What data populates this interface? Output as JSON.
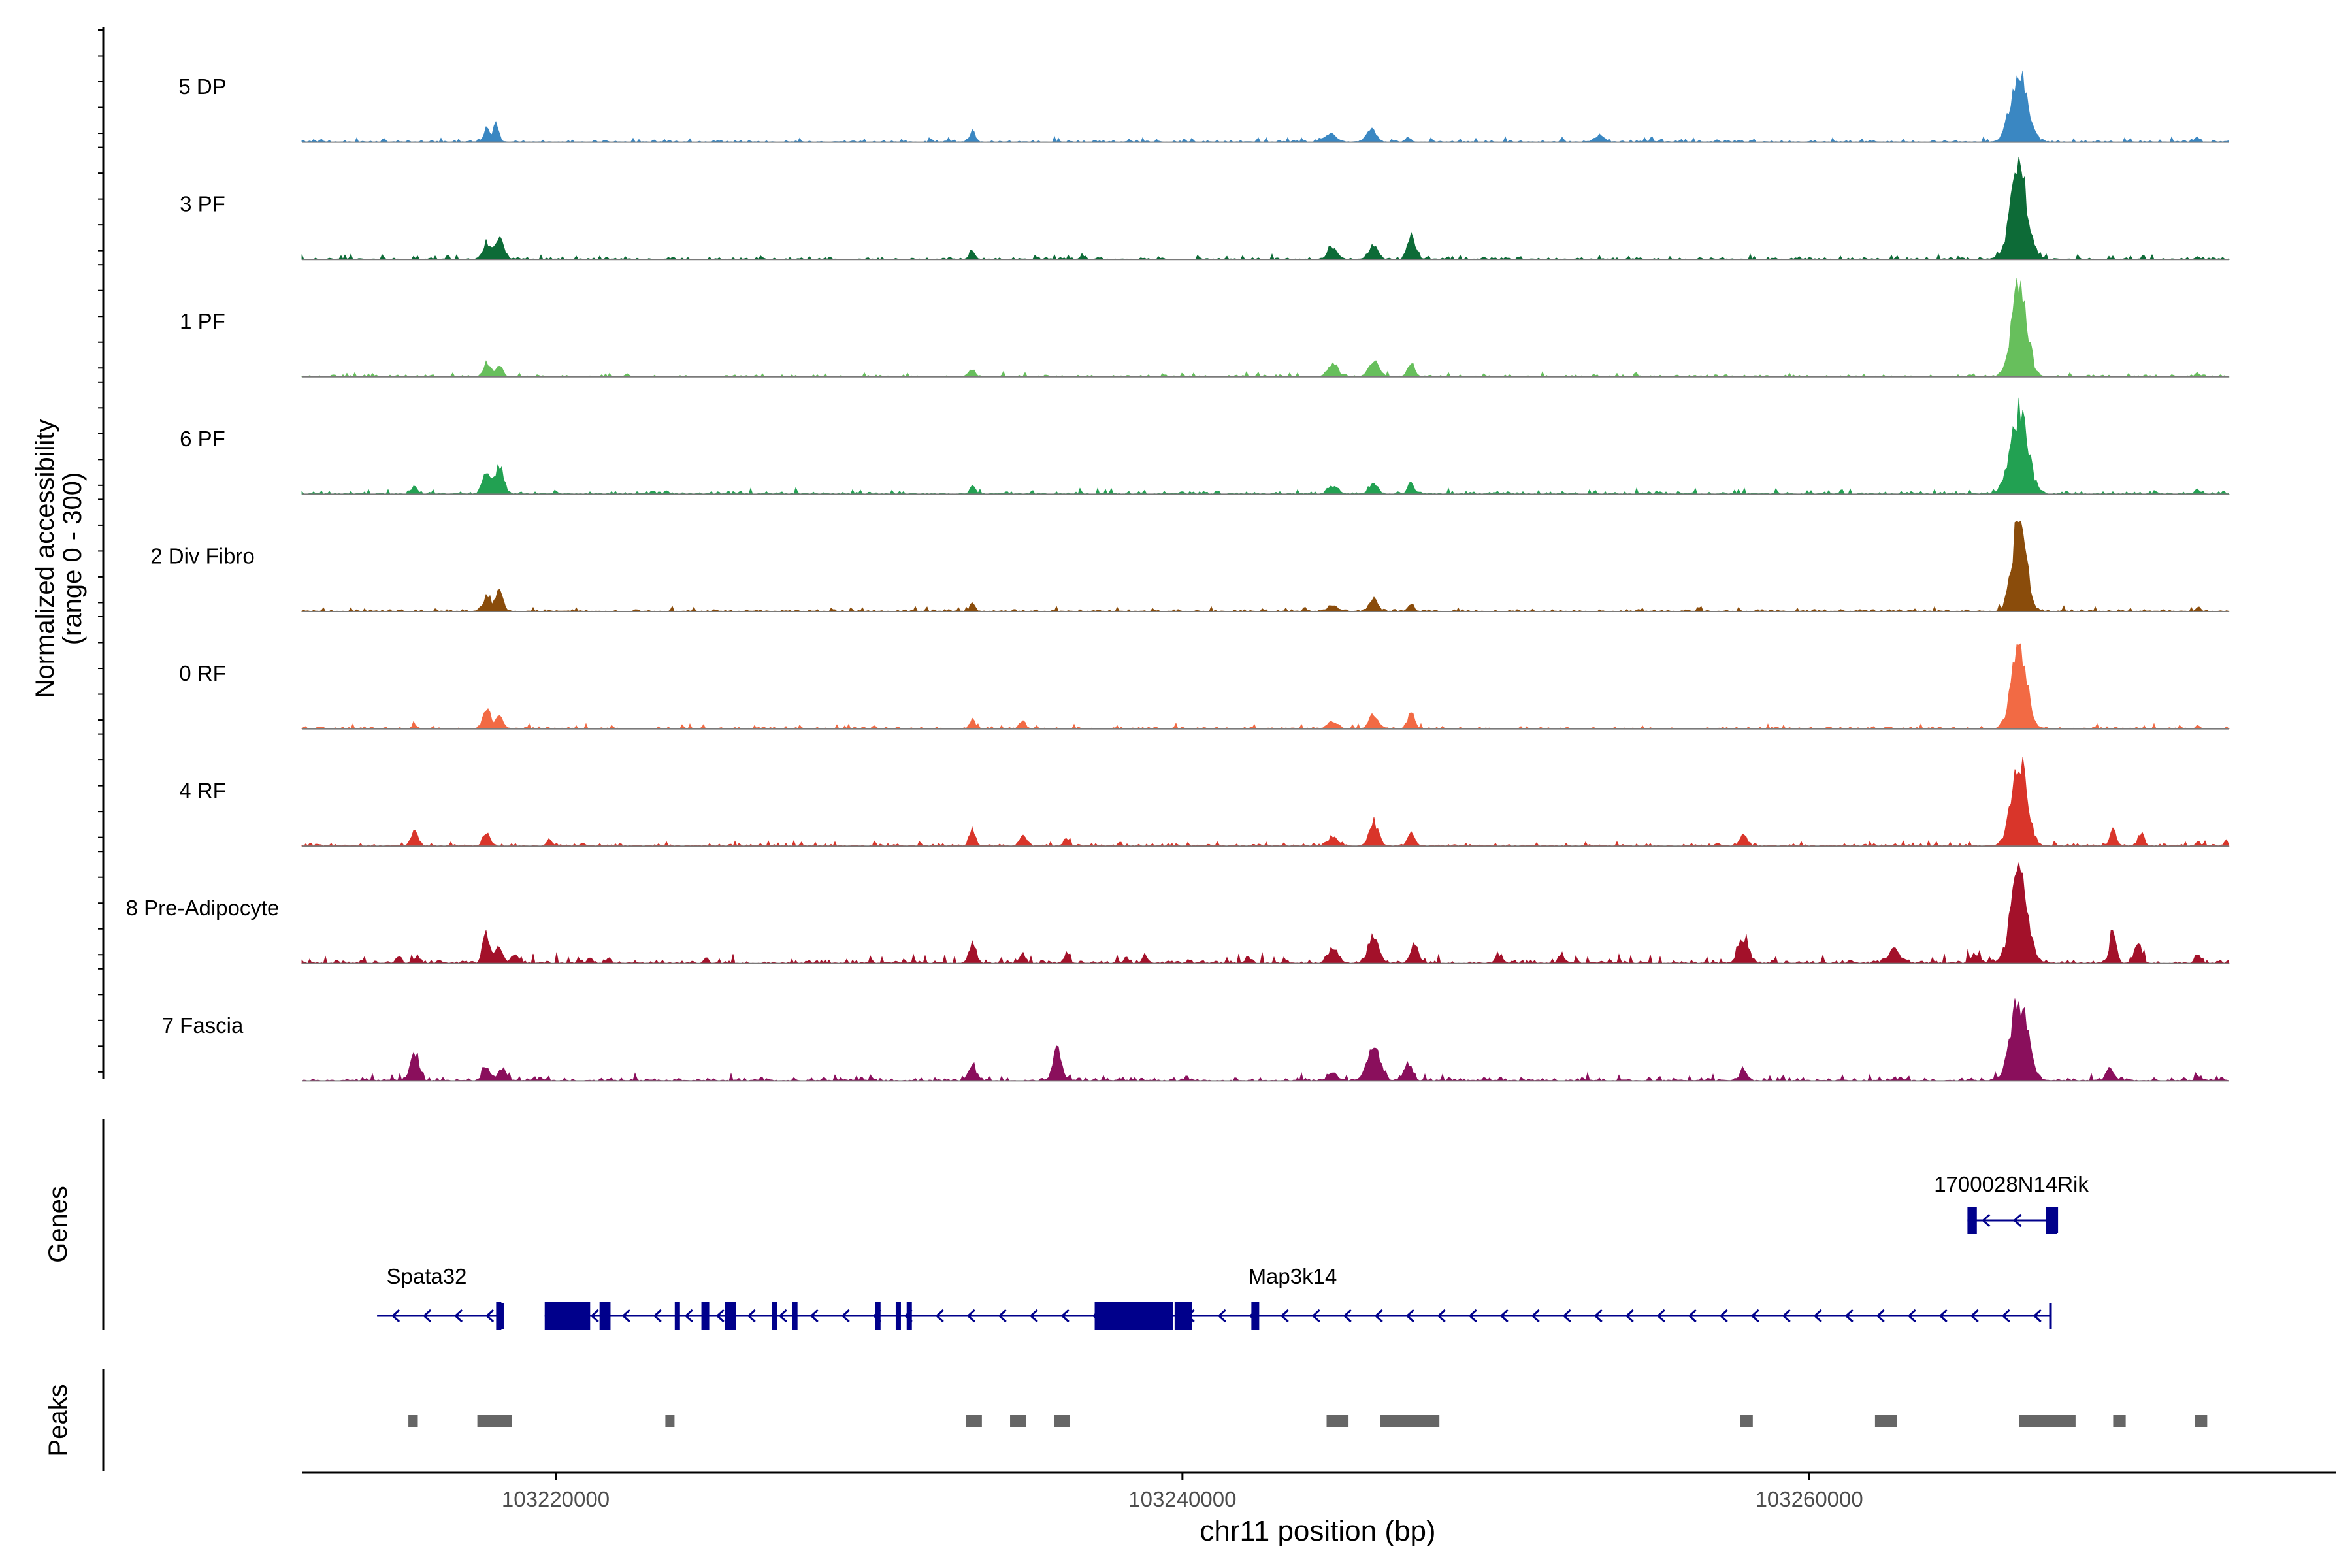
{
  "chart_data": {
    "type": "area",
    "title": "",
    "region": "chr11",
    "xlabel": "chr11 position (bp)",
    "ylabel_line1": "Normalized accessibility",
    "ylabel_line2": "(range 0 - 300)",
    "ylim": [
      0,
      300
    ],
    "xlim": [
      103211900,
      103276800
    ],
    "x_ticks": [
      {
        "value": 103220000,
        "label": "103220000"
      },
      {
        "value": 103240000,
        "label": "103240000"
      },
      {
        "value": 103260000,
        "label": "103260000"
      }
    ],
    "track_start": 103211900,
    "track_end": 103273400,
    "series": [
      {
        "name": "5 DP",
        "color": "#3a87c2",
        "baseline": 3,
        "noise": 2,
        "peaks": [
          [
            103217800,
            18,
            100
          ],
          [
            103218100,
            22,
            90
          ],
          [
            103233300,
            14,
            90
          ],
          [
            103244700,
            10,
            200
          ],
          [
            103246000,
            18,
            150
          ],
          [
            103247200,
            6,
            90
          ],
          [
            103253300,
            8,
            160
          ],
          [
            103266700,
            95,
            260
          ],
          [
            103272400,
            6,
            60
          ]
        ]
      },
      {
        "name": "3 PF",
        "color": "#0d6b37",
        "baseline": 3,
        "noise": 2,
        "peaks": [
          [
            103217800,
            22,
            120
          ],
          [
            103218200,
            28,
            130
          ],
          [
            103233300,
            12,
            80
          ],
          [
            103236800,
            5,
            80
          ],
          [
            103244800,
            15,
            150
          ],
          [
            103246100,
            18,
            140
          ],
          [
            103247300,
            26,
            120
          ],
          [
            103266700,
            120,
            260
          ],
          [
            103272400,
            4,
            60
          ]
        ]
      },
      {
        "name": "1 PF",
        "color": "#67bf5c",
        "baseline": 3,
        "noise": 2,
        "peaks": [
          [
            103217800,
            18,
            110
          ],
          [
            103218200,
            14,
            110
          ],
          [
            103233300,
            10,
            80
          ],
          [
            103244800,
            18,
            150
          ],
          [
            103246100,
            22,
            150
          ],
          [
            103247300,
            18,
            110
          ],
          [
            103266700,
            115,
            240
          ],
          [
            103272400,
            4,
            60
          ]
        ]
      },
      {
        "name": "6 PF",
        "color": "#22a152",
        "baseline": 4,
        "noise": 2,
        "peaks": [
          [
            103215500,
            10,
            80
          ],
          [
            103217800,
            30,
            120
          ],
          [
            103218200,
            38,
            130
          ],
          [
            103233300,
            12,
            80
          ],
          [
            103244800,
            10,
            150
          ],
          [
            103246100,
            16,
            130
          ],
          [
            103247300,
            14,
            100
          ],
          [
            103266700,
            105,
            280
          ],
          [
            103272400,
            6,
            60
          ]
        ]
      },
      {
        "name": "2 Div Fibro",
        "color": "#8a4c0b",
        "baseline": 3,
        "noise": 2,
        "peaks": [
          [
            103217800,
            22,
            110
          ],
          [
            103218200,
            28,
            110
          ],
          [
            103233300,
            12,
            80
          ],
          [
            103244800,
            8,
            150
          ],
          [
            103246100,
            16,
            130
          ],
          [
            103247300,
            8,
            100
          ],
          [
            103266700,
            125,
            220
          ],
          [
            103272400,
            6,
            60
          ]
        ]
      },
      {
        "name": "0 RF",
        "color": "#f26a44",
        "baseline": 3,
        "noise": 2,
        "peaks": [
          [
            103215500,
            6,
            80
          ],
          [
            103217800,
            28,
            110
          ],
          [
            103218200,
            18,
            110
          ],
          [
            103233300,
            12,
            80
          ],
          [
            103234900,
            12,
            90
          ],
          [
            103244800,
            10,
            150
          ],
          [
            103246100,
            20,
            130
          ],
          [
            103247300,
            20,
            110
          ],
          [
            103266700,
            110,
            240
          ],
          [
            103272400,
            4,
            60
          ]
        ]
      },
      {
        "name": "4 RF",
        "color": "#d9352a",
        "baseline": 4,
        "noise": 2,
        "peaks": [
          [
            103215500,
            22,
            110
          ],
          [
            103217800,
            16,
            110
          ],
          [
            103219800,
            8,
            90
          ],
          [
            103233300,
            22,
            90
          ],
          [
            103234900,
            16,
            100
          ],
          [
            103236300,
            8,
            90
          ],
          [
            103244800,
            12,
            150
          ],
          [
            103246100,
            30,
            150
          ],
          [
            103247300,
            18,
            110
          ],
          [
            103257900,
            16,
            100
          ],
          [
            103266700,
            110,
            250
          ],
          [
            103269700,
            24,
            90
          ],
          [
            103270600,
            18,
            90
          ],
          [
            103272400,
            6,
            60
          ],
          [
            103273300,
            6,
            60
          ]
        ]
      },
      {
        "name": "8 Pre-Adipocyte",
        "color": "#a3112a",
        "baseline": 5,
        "noise": 4,
        "peaks": [
          [
            103215000,
            8,
            80
          ],
          [
            103215600,
            10,
            80
          ],
          [
            103217800,
            40,
            110
          ],
          [
            103218200,
            20,
            110
          ],
          [
            103218700,
            12,
            90
          ],
          [
            103221100,
            8,
            70
          ],
          [
            103221700,
            8,
            70
          ],
          [
            103224800,
            8,
            70
          ],
          [
            103233300,
            28,
            110
          ],
          [
            103234900,
            14,
            90
          ],
          [
            103236300,
            10,
            90
          ],
          [
            103238200,
            8,
            80
          ],
          [
            103238800,
            8,
            80
          ],
          [
            103242100,
            8,
            80
          ],
          [
            103244800,
            20,
            160
          ],
          [
            103246100,
            36,
            160
          ],
          [
            103247400,
            24,
            130
          ],
          [
            103250100,
            10,
            110
          ],
          [
            103252100,
            10,
            100
          ],
          [
            103257900,
            36,
            150
          ],
          [
            103262700,
            16,
            200
          ],
          [
            103265300,
            12,
            150
          ],
          [
            103266700,
            120,
            260
          ],
          [
            103269700,
            50,
            100
          ],
          [
            103270500,
            30,
            110
          ],
          [
            103272400,
            14,
            80
          ]
        ]
      },
      {
        "name": "7 Fascia",
        "color": "#8a0f5c",
        "baseline": 5,
        "noise": 3,
        "peaks": [
          [
            103215500,
            36,
            130
          ],
          [
            103217800,
            20,
            110
          ],
          [
            103218300,
            18,
            120
          ],
          [
            103233300,
            22,
            110
          ],
          [
            103236000,
            40,
            130
          ],
          [
            103244800,
            10,
            150
          ],
          [
            103246100,
            50,
            200
          ],
          [
            103247200,
            22,
            130
          ],
          [
            103257900,
            14,
            110
          ],
          [
            103266700,
            110,
            260
          ],
          [
            103269600,
            18,
            110
          ],
          [
            103272400,
            6,
            70
          ]
        ]
      }
    ],
    "genes": {
      "track_label": "Genes",
      "features": [
        {
          "name": "Spata32",
          "start": 103214300,
          "end": 103218300,
          "strand": "-",
          "exons": [
            [
              103218100,
              103218200
            ]
          ]
        },
        {
          "name": "Map3k14",
          "start": 103219650,
          "end": 103267700,
          "strand": "-",
          "exons": [
            [
              103219650,
              103221100
            ],
            [
              103221400,
              103221750
            ],
            [
              103223800,
              103223950
            ],
            [
              103224650,
              103224900
            ],
            [
              103225400,
              103225750
            ],
            [
              103226900,
              103227050
            ],
            [
              103227550,
              103227650
            ],
            [
              103230200,
              103230300
            ],
            [
              103230850,
              103230950
            ],
            [
              103231200,
              103231300
            ],
            [
              103237200,
              103239700
            ],
            [
              103239750,
              103240300
            ],
            [
              103242200,
              103242450
            ]
          ]
        },
        {
          "name": "1700028N14Rik",
          "start": 103265050,
          "end": 103267900,
          "strand": "-",
          "exons": [
            [
              103265050,
              103265350
            ],
            [
              103267550,
              103267900
            ]
          ]
        }
      ]
    },
    "peaks": {
      "track_label": "Peaks",
      "regions": [
        [
          103215300,
          103215600
        ],
        [
          103217500,
          103218600
        ],
        [
          103223500,
          103223700
        ],
        [
          103233100,
          103233600
        ],
        [
          103234500,
          103235000
        ],
        [
          103235900,
          103236400
        ],
        [
          103244600,
          103245300
        ],
        [
          103246300,
          103248200
        ],
        [
          103257800,
          103258200
        ],
        [
          103262100,
          103262800
        ],
        [
          103266700,
          103268500
        ],
        [
          103269700,
          103270100
        ],
        [
          103272300,
          103272700
        ]
      ]
    }
  }
}
